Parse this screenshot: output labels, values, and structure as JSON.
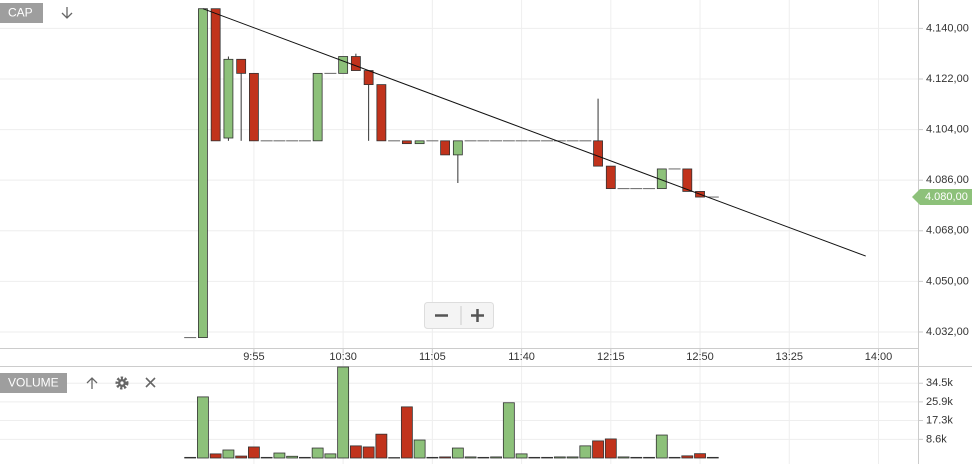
{
  "chart_data": [
    {
      "type": "candlestick",
      "title": "CAP",
      "x": [
        570,
        575,
        580,
        585,
        590,
        595,
        600,
        605,
        610,
        615,
        620,
        625,
        630,
        635,
        640,
        645,
        650,
        655,
        660,
        665,
        670,
        675,
        680,
        685,
        690,
        695,
        700,
        705,
        710,
        715,
        720,
        725,
        730,
        735,
        740,
        745,
        750,
        755,
        760,
        765,
        770,
        775
      ],
      "open": [
        4030,
        4030,
        4147,
        4101,
        4129,
        4124,
        4100,
        4100,
        4100,
        4100,
        4100,
        4124,
        4124,
        4130,
        4125,
        4120,
        4100,
        4100,
        4099,
        4100,
        4100,
        4095,
        4100,
        4100,
        4100,
        4100,
        4100,
        4100,
        4100,
        4100,
        4100,
        4100,
        4100,
        4091,
        4083,
        4083,
        4083,
        4083,
        4090,
        4090,
        4082,
        4080
      ],
      "high": [
        4030,
        4147,
        4147,
        4130,
        4129,
        4124,
        4100,
        4100,
        4100,
        4100,
        4124,
        4124,
        4130,
        4131,
        4125,
        4120,
        4100,
        4100,
        4100,
        4100,
        4100,
        4100,
        4100,
        4100,
        4100,
        4100,
        4100,
        4100,
        4100,
        4100,
        4100,
        4100,
        4115,
        4091,
        4083,
        4083,
        4083,
        4090,
        4090,
        4090,
        4082,
        4080
      ],
      "low": [
        4030,
        4030,
        4100,
        4100,
        4100,
        4100,
        4100,
        4100,
        4100,
        4100,
        4100,
        4124,
        4124,
        4125,
        4100,
        4100,
        4100,
        4099,
        4099,
        4100,
        4095,
        4085,
        4100,
        4100,
        4100,
        4100,
        4100,
        4100,
        4100,
        4100,
        4100,
        4100,
        4091,
        4083,
        4083,
        4083,
        4083,
        4083,
        4090,
        4082,
        4080,
        4080
      ],
      "close": [
        4030,
        4147,
        4100,
        4129,
        4124,
        4100,
        4100,
        4100,
        4100,
        4100,
        4124,
        4124,
        4130,
        4125,
        4120,
        4100,
        4100,
        4099,
        4100,
        4100,
        4095,
        4100,
        4100,
        4100,
        4100,
        4100,
        4100,
        4100,
        4100,
        4100,
        4100,
        4100,
        4091,
        4083,
        4083,
        4083,
        4083,
        4090,
        4090,
        4082,
        4080,
        4080
      ],
      "up_color": "#8dc17a",
      "down_color": "#c1331c",
      "xlim": [
        495.4,
        855.5
      ],
      "xticks": [
        {
          "value": 595,
          "label": "9:55"
        },
        {
          "value": 630,
          "label": "10:30"
        },
        {
          "value": 665,
          "label": "11:05"
        },
        {
          "value": 700,
          "label": "11:40"
        },
        {
          "value": 735,
          "label": "12:15"
        },
        {
          "value": 770,
          "label": "12:50"
        },
        {
          "value": 805,
          "label": "13:25"
        },
        {
          "value": 840,
          "label": "14:00"
        }
      ],
      "ylim": [
        4026.3,
        4150.1
      ],
      "yticks": [
        {
          "value": 4032,
          "label": "4.032,00"
        },
        {
          "value": 4050,
          "label": "4.050,00"
        },
        {
          "value": 4068,
          "label": "4.068,00"
        },
        {
          "value": 4086,
          "label": "4.086,00"
        },
        {
          "value": 4104,
          "label": "4.104,00"
        },
        {
          "value": 4122,
          "label": "4.122,00"
        },
        {
          "value": 4140,
          "label": "4.140,00"
        }
      ],
      "last_price": {
        "value": 4080,
        "label": "4.080,00"
      },
      "trendline": {
        "x": [
          575,
          835
        ],
        "y": [
          4147,
          4059
        ]
      },
      "grid": true
    },
    {
      "type": "bar",
      "title": "VOLUME",
      "x": [
        570,
        575,
        580,
        585,
        590,
        595,
        600,
        605,
        610,
        615,
        620,
        625,
        630,
        635,
        640,
        645,
        650,
        655,
        660,
        665,
        670,
        675,
        680,
        685,
        690,
        695,
        700,
        705,
        710,
        715,
        720,
        725,
        730,
        735,
        740,
        745,
        750,
        755,
        760,
        765,
        770,
        775
      ],
      "values": [
        300,
        28200,
        1900,
        3700,
        900,
        5100,
        300,
        2300,
        800,
        300,
        4600,
        1900,
        42000,
        5600,
        5100,
        11000,
        200,
        23600,
        8300,
        300,
        500,
        4600,
        500,
        300,
        500,
        25500,
        1900,
        300,
        300,
        500,
        500,
        5600,
        7900,
        8800,
        500,
        300,
        300,
        10600,
        300,
        1000,
        2000,
        300
      ],
      "xlim": [
        495.4,
        855.5
      ],
      "ylim": [
        0,
        42000
      ],
      "yticks": [
        {
          "value": 8600,
          "label": "8.6k"
        },
        {
          "value": 17300,
          "label": "17.3k"
        },
        {
          "value": 25900,
          "label": "25.9k"
        },
        {
          "value": 34500,
          "label": "34.5k"
        }
      ],
      "grid": true
    }
  ]
}
